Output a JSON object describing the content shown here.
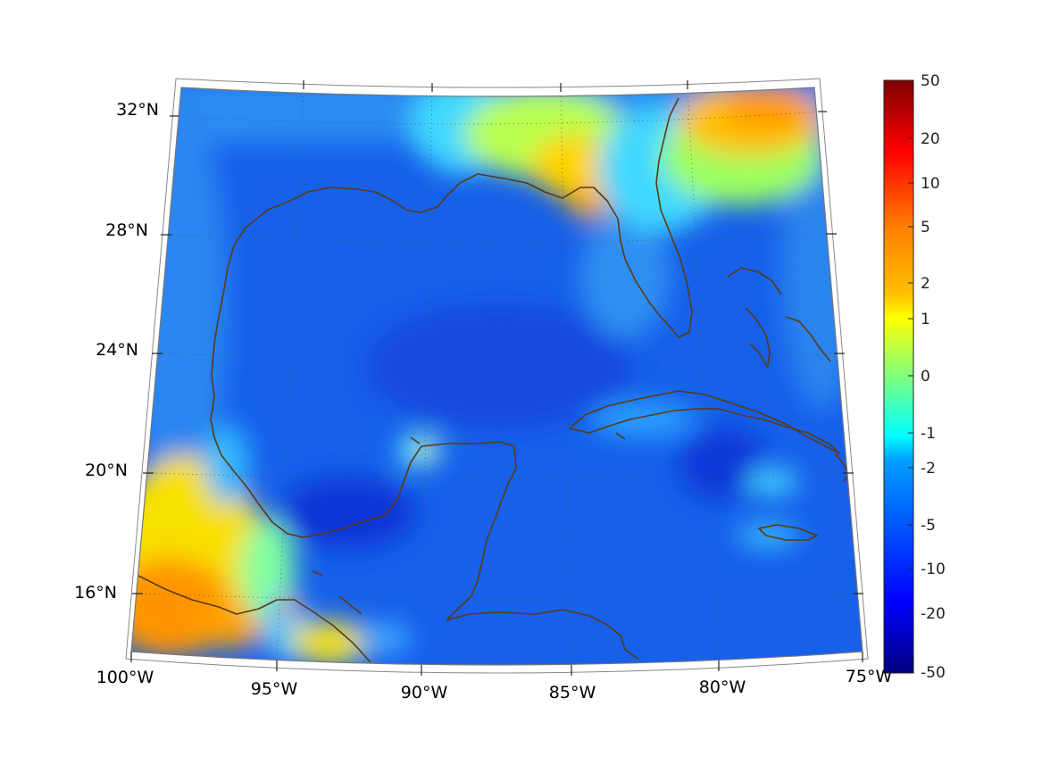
{
  "map": {
    "region": "Gulf of Mexico and Caribbean",
    "projection": "conic",
    "graticule": "dotted",
    "coastline_color": "#5a3a12",
    "latitude_labels": [
      "32°N",
      "28°N",
      "24°N",
      "20°N",
      "16°N"
    ],
    "longitude_labels": [
      "100°W",
      "95°W",
      "90°W",
      "85°W",
      "80°W",
      "75°W"
    ]
  },
  "colorbar": {
    "colormap": "jet",
    "min_color": "#00007f",
    "max_color": "#7f0000",
    "labels": [
      "50",
      "20",
      "10",
      "5",
      "2",
      "1",
      "0",
      "-1",
      "-2",
      "-5",
      "-10",
      "-20",
      "-50"
    ]
  }
}
